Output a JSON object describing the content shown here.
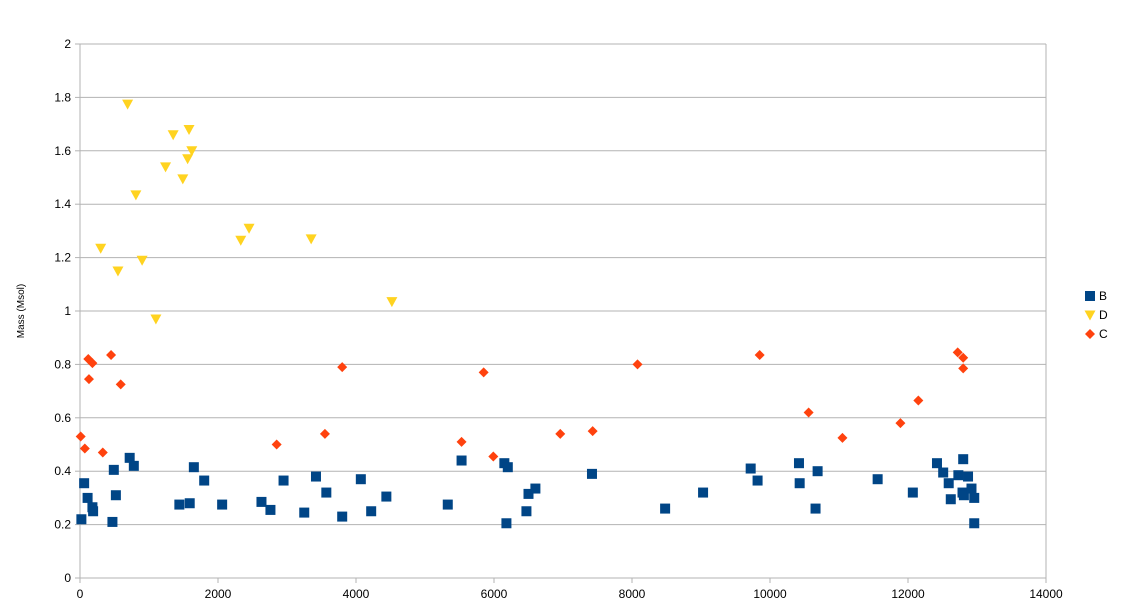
{
  "chart_data": {
    "type": "scatter",
    "title": "",
    "xlabel": "",
    "ylabel": "Mass (Msol)",
    "xlim": [
      0,
      14000
    ],
    "ylim": [
      0,
      2
    ],
    "xticks": [
      "0",
      "2000",
      "4000",
      "6000",
      "8000",
      "10000",
      "12000",
      "14000"
    ],
    "yticks": [
      "0",
      "0.2",
      "0.4",
      "0.6",
      "0.8",
      "1",
      "1.2",
      "1.4",
      "1.6",
      "1.8",
      "2"
    ],
    "grid": "horizontal",
    "legend_position": "right",
    "series": [
      {
        "name": "B",
        "marker": "square",
        "color": "#004586",
        "points": [
          [
            20,
            0.22
          ],
          [
            60,
            0.355
          ],
          [
            110,
            0.3
          ],
          [
            180,
            0.265
          ],
          [
            190,
            0.25
          ],
          [
            470,
            0.21
          ],
          [
            490,
            0.405
          ],
          [
            520,
            0.31
          ],
          [
            720,
            0.45
          ],
          [
            780,
            0.42
          ],
          [
            1440,
            0.275
          ],
          [
            1590,
            0.28
          ],
          [
            1650,
            0.415
          ],
          [
            1800,
            0.365
          ],
          [
            2060,
            0.275
          ],
          [
            2630,
            0.285
          ],
          [
            2760,
            0.255
          ],
          [
            2950,
            0.365
          ],
          [
            3250,
            0.245
          ],
          [
            3420,
            0.38
          ],
          [
            3570,
            0.32
          ],
          [
            3800,
            0.23
          ],
          [
            4070,
            0.37
          ],
          [
            4220,
            0.25
          ],
          [
            4440,
            0.305
          ],
          [
            5330,
            0.275
          ],
          [
            5530,
            0.44
          ],
          [
            6150,
            0.43
          ],
          [
            6180,
            0.205
          ],
          [
            6200,
            0.415
          ],
          [
            6470,
            0.25
          ],
          [
            6500,
            0.315
          ],
          [
            6600,
            0.335
          ],
          [
            7420,
            0.39
          ],
          [
            8480,
            0.26
          ],
          [
            9030,
            0.32
          ],
          [
            9720,
            0.41
          ],
          [
            9820,
            0.365
          ],
          [
            10420,
            0.43
          ],
          [
            10430,
            0.355
          ],
          [
            10660,
            0.26
          ],
          [
            10690,
            0.4
          ],
          [
            11560,
            0.37
          ],
          [
            12070,
            0.32
          ],
          [
            12420,
            0.43
          ],
          [
            12510,
            0.395
          ],
          [
            12590,
            0.355
          ],
          [
            12620,
            0.295
          ],
          [
            12730,
            0.385
          ],
          [
            12790,
            0.32
          ],
          [
            12800,
            0.445
          ],
          [
            12810,
            0.31
          ],
          [
            12870,
            0.38
          ],
          [
            12920,
            0.335
          ],
          [
            12960,
            0.3
          ],
          [
            12960,
            0.205
          ]
        ]
      },
      {
        "name": "D",
        "marker": "triangle-down",
        "color": "#ffd320",
        "points": [
          [
            300,
            1.235
          ],
          [
            550,
            1.15
          ],
          [
            690,
            1.775
          ],
          [
            810,
            1.435
          ],
          [
            900,
            1.19
          ],
          [
            1100,
            0.97
          ],
          [
            1240,
            1.54
          ],
          [
            1350,
            1.66
          ],
          [
            1490,
            1.495
          ],
          [
            1560,
            1.57
          ],
          [
            1580,
            1.68
          ],
          [
            1620,
            1.6
          ],
          [
            2330,
            1.265
          ],
          [
            2450,
            1.31
          ],
          [
            3350,
            1.27
          ],
          [
            4520,
            1.035
          ]
        ]
      },
      {
        "name": "C",
        "marker": "diamond",
        "color": "#ff420e",
        "points": [
          [
            10,
            0.53
          ],
          [
            70,
            0.485
          ],
          [
            120,
            0.82
          ],
          [
            130,
            0.745
          ],
          [
            180,
            0.805
          ],
          [
            330,
            0.47
          ],
          [
            450,
            0.835
          ],
          [
            590,
            0.725
          ],
          [
            2850,
            0.5
          ],
          [
            3550,
            0.54
          ],
          [
            3800,
            0.79
          ],
          [
            5530,
            0.51
          ],
          [
            5850,
            0.77
          ],
          [
            5990,
            0.455
          ],
          [
            6960,
            0.54
          ],
          [
            7430,
            0.55
          ],
          [
            8080,
            0.8
          ],
          [
            9850,
            0.835
          ],
          [
            10560,
            0.62
          ],
          [
            11050,
            0.525
          ],
          [
            11890,
            0.58
          ],
          [
            12150,
            0.665
          ],
          [
            12720,
            0.845
          ],
          [
            12800,
            0.785
          ],
          [
            12800,
            0.825
          ]
        ]
      }
    ]
  }
}
